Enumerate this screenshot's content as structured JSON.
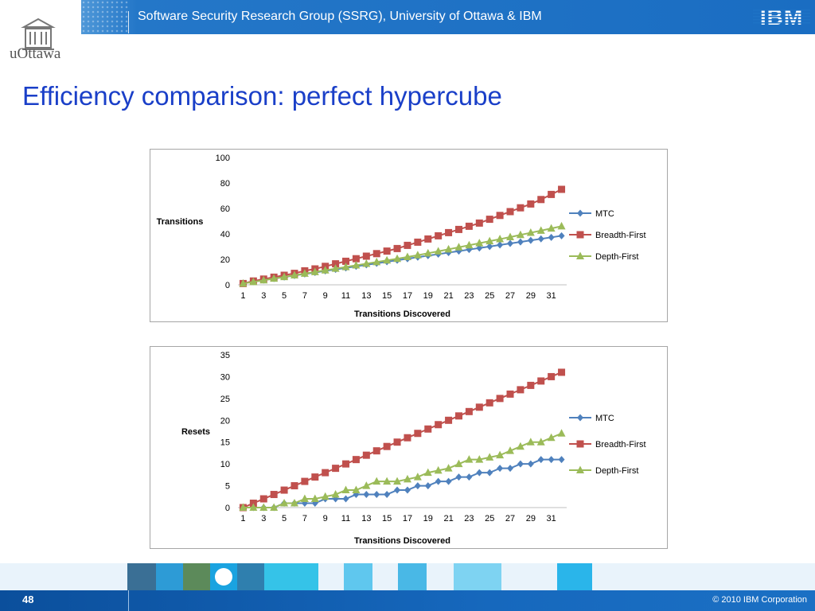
{
  "header": {
    "text": "Software Security Research Group (SSRG), University of Ottawa & IBM",
    "ibm_logo_text": "IBM",
    "brand_color": "#1e73c6"
  },
  "logo": {
    "text": "uOttawa",
    "icon": "university-building-icon"
  },
  "slide": {
    "title": "Efficiency comparison: perfect hypercube"
  },
  "footer": {
    "page_number": "48",
    "copyright": "© 2010 IBM Corporation"
  },
  "chart_data": [
    {
      "type": "line",
      "title": "",
      "xlabel": "Transitions Discovered",
      "ylabel": "Transitions",
      "ylim": [
        0,
        100
      ],
      "yticks": [
        0,
        20,
        40,
        60,
        80,
        100
      ],
      "x": [
        1,
        2,
        3,
        4,
        5,
        6,
        7,
        8,
        9,
        10,
        11,
        12,
        13,
        14,
        15,
        16,
        17,
        18,
        19,
        20,
        21,
        22,
        23,
        24,
        25,
        26,
        27,
        28,
        29,
        30,
        31,
        32
      ],
      "xtick_labels": [
        "1",
        "3",
        "5",
        "7",
        "9",
        "11",
        "13",
        "15",
        "17",
        "19",
        "21",
        "23",
        "25",
        "27",
        "29",
        "31"
      ],
      "legend_position": "right",
      "grid": false,
      "series": [
        {
          "name": "MTC",
          "color": "#4f81bd",
          "marker": "diamond",
          "values": [
            1.3,
            2.5,
            3.7,
            4.9,
            6.1,
            7.3,
            8.5,
            9.7,
            10.9,
            12.1,
            13.3,
            14.5,
            15.7,
            16.9,
            18.1,
            19.3,
            20.5,
            21.7,
            22.9,
            24.1,
            25.3,
            26.5,
            27.7,
            28.9,
            30.1,
            31.3,
            32.5,
            33.7,
            34.9,
            36.1,
            37.3,
            38.5
          ]
        },
        {
          "name": "Breadth-First",
          "color": "#c0504d",
          "marker": "square",
          "values": [
            1,
            3,
            4.5,
            6,
            7.5,
            9,
            11,
            12.5,
            14.5,
            16.5,
            18.5,
            20.5,
            22.5,
            24.5,
            26.5,
            28.5,
            31,
            33.5,
            36,
            38.5,
            41,
            43.5,
            46,
            48.5,
            51.5,
            54.5,
            57.5,
            60.5,
            63.5,
            67,
            71,
            75
          ]
        },
        {
          "name": "Depth-First",
          "color": "#9bbb59",
          "marker": "triangle",
          "values": [
            1,
            2.3,
            3.6,
            4.9,
            6.2,
            7.5,
            8.8,
            10.1,
            11.4,
            12.7,
            14,
            15.3,
            16.6,
            17.9,
            19.2,
            20.5,
            21.9,
            23.3,
            24.8,
            26.3,
            27.9,
            29.5,
            31.1,
            32.7,
            34.3,
            35.9,
            37.5,
            39.2,
            40.9,
            42.6,
            44.3,
            46
          ]
        }
      ]
    },
    {
      "type": "line",
      "title": "",
      "xlabel": "Transitions Discovered",
      "ylabel": "Resets",
      "ylim": [
        0,
        35
      ],
      "yticks": [
        0,
        5,
        10,
        15,
        20,
        25,
        30,
        35
      ],
      "x": [
        1,
        2,
        3,
        4,
        5,
        6,
        7,
        8,
        9,
        10,
        11,
        12,
        13,
        14,
        15,
        16,
        17,
        18,
        19,
        20,
        21,
        22,
        23,
        24,
        25,
        26,
        27,
        28,
        29,
        30,
        31,
        32
      ],
      "xtick_labels": [
        "1",
        "3",
        "5",
        "7",
        "9",
        "11",
        "13",
        "15",
        "17",
        "19",
        "21",
        "23",
        "25",
        "27",
        "29",
        "31"
      ],
      "legend_position": "right",
      "grid": false,
      "series": [
        {
          "name": "MTC",
          "color": "#4f81bd",
          "marker": "diamond",
          "values": [
            0,
            0,
            0,
            0,
            1,
            1,
            1,
            1,
            2,
            2,
            2,
            3,
            3,
            3,
            3,
            4,
            4,
            5,
            5,
            6,
            6,
            7,
            7,
            8,
            8,
            9,
            9,
            10,
            10,
            11,
            11,
            11
          ]
        },
        {
          "name": "Breadth-First",
          "color": "#c0504d",
          "marker": "square",
          "values": [
            0,
            1,
            2,
            3,
            4,
            5,
            6,
            7,
            8,
            9,
            10,
            11,
            12,
            13,
            14,
            15,
            16,
            17,
            18,
            19,
            20,
            21,
            22,
            23,
            24,
            25,
            26,
            27,
            28,
            29,
            30,
            31
          ]
        },
        {
          "name": "Depth-First",
          "color": "#9bbb59",
          "marker": "triangle",
          "values": [
            0,
            0,
            0,
            0,
            1,
            1,
            2,
            2,
            2.5,
            3,
            4,
            4,
            5,
            6,
            6,
            6,
            6.5,
            7,
            8,
            8.5,
            9,
            10,
            11,
            11,
            11.5,
            12,
            13,
            14,
            15,
            15,
            16,
            17
          ]
        }
      ]
    }
  ]
}
